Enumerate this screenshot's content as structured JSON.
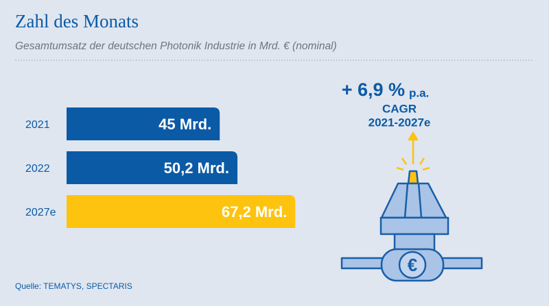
{
  "chart_data": {
    "type": "hbar",
    "title": "Zahl des Monats",
    "subtitle": "Gesamtumsatz der deutschen Photonik Industrie in Mrd. € (nominal)",
    "categories": [
      "2021",
      "2022",
      "2027e"
    ],
    "values": [
      45,
      50.2,
      67.2
    ],
    "value_labels": [
      "45 Mrd.",
      "50,2 Mrd.",
      "67,2 Mrd."
    ],
    "colors": [
      "#0b5aa6",
      "#0b5aa6",
      "#fdc30f"
    ],
    "annotation": {
      "growth": "+ 6,9 %",
      "unit": "p.a.",
      "label": "CAGR",
      "period": "2021-2027e",
      "icon_symbol": "€"
    },
    "source": "Quelle: TEMATYS, SPECTARIS"
  }
}
